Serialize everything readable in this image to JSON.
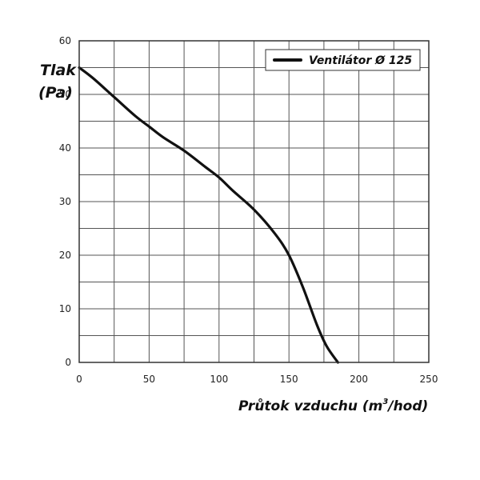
{
  "chart_data": {
    "type": "line",
    "title": "",
    "ylabel_line1": "Tlak",
    "ylabel_line2": "(Pa)",
    "xlabel_main": "Průtok vzduchu (m",
    "xlabel_sup": "3",
    "xlabel_tail": "/hod)",
    "xlim": [
      0,
      250
    ],
    "ylim": [
      0,
      60
    ],
    "x_ticks": [
      "0",
      "50",
      "100",
      "150",
      "200",
      "250"
    ],
    "y_ticks": [
      "0",
      "10",
      "20",
      "30",
      "40",
      "50",
      "60"
    ],
    "grid": true,
    "legend_position": "top-right",
    "series": [
      {
        "name": "Ventilátor Ø 125",
        "color": "#111111",
        "x": [
          0,
          10,
          25,
          40,
          50,
          60,
          75,
          90,
          100,
          110,
          125,
          140,
          150,
          160,
          170,
          177,
          185
        ],
        "y": [
          55,
          53,
          49.5,
          46,
          44,
          42,
          39.5,
          36.5,
          34.5,
          32,
          28.5,
          24,
          20,
          14,
          7,
          3,
          0
        ]
      }
    ]
  }
}
